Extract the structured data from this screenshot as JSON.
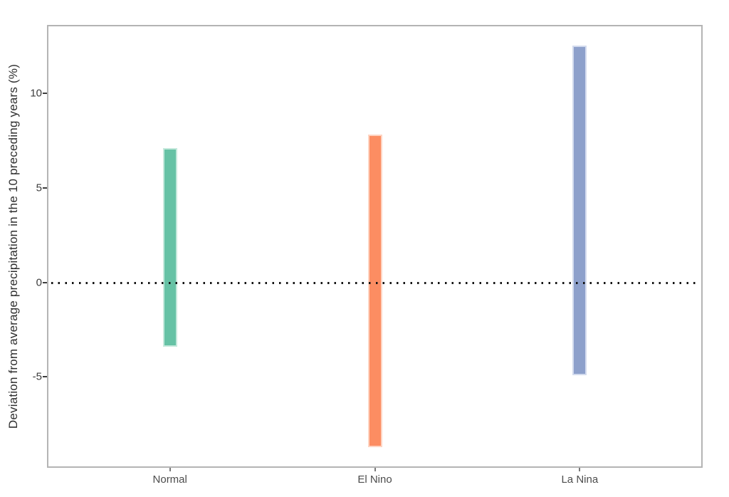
{
  "chart_data": {
    "type": "bar",
    "subtype": "floating-range-bars",
    "title": "",
    "xlabel": "",
    "ylabel": "Deviation from average precipitation in the 10 preceding years (%)",
    "categories": [
      "Normal",
      "El Nino",
      "La Nina"
    ],
    "series": [
      {
        "name": "precipitation-deviation-range",
        "ranges": [
          {
            "category": "Normal",
            "low": -3.4,
            "high": 7.1
          },
          {
            "category": "El Nino",
            "low": -8.7,
            "high": 7.8
          },
          {
            "category": "La Nina",
            "low": -4.9,
            "high": 12.5
          }
        ]
      }
    ],
    "yticks": [
      10,
      5,
      0,
      -5
    ],
    "ylim": [
      -9.8,
      13.6
    ],
    "grid": false,
    "legend": false,
    "zero_reference_line": {
      "value": 0,
      "style": "dotted",
      "color": "#141414"
    }
  },
  "colors": {
    "bar_fills": [
      "#66C2A5",
      "#FC8D62",
      "#8DA0CB"
    ],
    "bar_edges": [
      "#c5e9dc",
      "#fed4c2",
      "#d3dbee"
    ],
    "plot_border": "#b4b4b4",
    "dotted_line": "#141414",
    "axis_text": "#3c3c3c",
    "background": "#ffffff"
  }
}
